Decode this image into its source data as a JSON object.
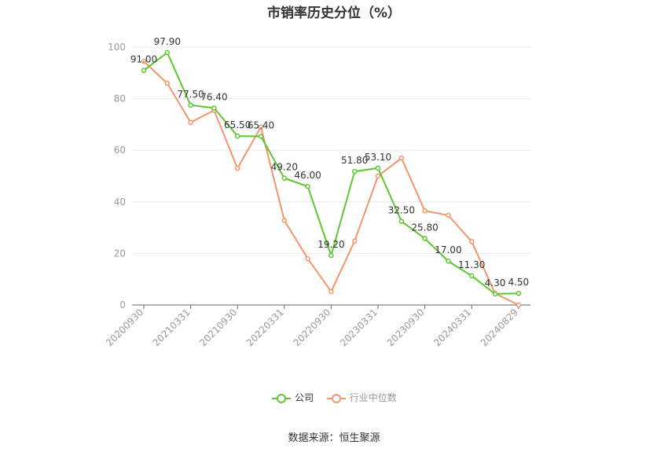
{
  "chart_data": {
    "type": "line",
    "title": "市销率历史分位（%）",
    "x": [
      "20200930",
      "20201231",
      "20210331",
      "20210630",
      "20210930",
      "20211231",
      "20220331",
      "20220630",
      "20220930",
      "20221231",
      "20230331",
      "20230630",
      "20230930",
      "20231231",
      "20240331",
      "20240630",
      "20240829"
    ],
    "x_tick_labels": [
      "20200930",
      "20210331",
      "20210930",
      "20220331",
      "20220930",
      "20230331",
      "20230930",
      "20240331",
      "20240829"
    ],
    "ylim": [
      0,
      100
    ],
    "y_ticks": [
      0,
      20,
      40,
      60,
      80,
      100
    ],
    "grid": true,
    "legend_position": "bottom",
    "series": [
      {
        "name": "公司",
        "color": "#5cc72e",
        "values": [
          91.0,
          97.9,
          77.5,
          76.4,
          65.5,
          65.4,
          49.2,
          46.0,
          19.2,
          51.8,
          53.1,
          32.5,
          25.8,
          17.0,
          11.3,
          4.3,
          4.5
        ],
        "labels": [
          "91.00",
          "97.90",
          "77.50",
          "76.40",
          "65.50",
          "65.40",
          "49.20",
          "46.00",
          "19.20",
          "51.80",
          "53.10",
          "32.50",
          "25.80",
          "17.00",
          "11.30",
          "4.30",
          "4.50"
        ]
      },
      {
        "name": "行业中位数",
        "color": "#f4956a",
        "values": [
          94.5,
          86.0,
          70.8,
          75.5,
          53.0,
          69.0,
          32.8,
          18.0,
          5.2,
          24.8,
          50.0,
          57.0,
          36.5,
          34.8,
          24.6,
          4.5,
          0.0
        ]
      }
    ]
  },
  "source_text": "数据来源：恒生聚源"
}
